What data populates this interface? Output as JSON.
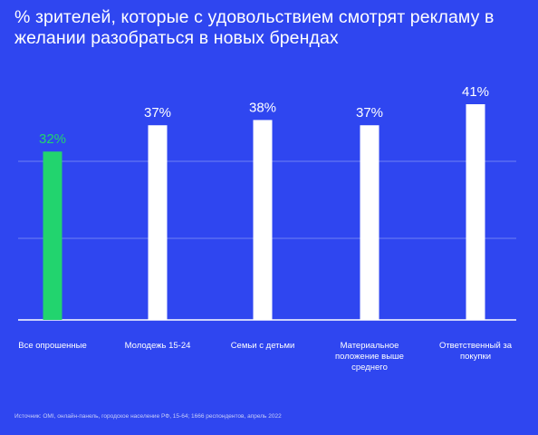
{
  "title": "% зрителей, которые с удовольствием смотрят рекламу в желании разобраться в новых брендах",
  "source": "Источник: OMI, онлайн-панель, городское население РФ, 15-64; 1666 респондентов, апрель 2022",
  "colors": {
    "background": "#2f46f0",
    "highlight_bar": "#22d46e",
    "bar": "#ffffff",
    "gridline": "#6f80f5",
    "text": "#ffffff"
  },
  "chart_data": {
    "type": "bar",
    "title": "% зрителей, которые с удовольствием смотрят рекламу в желании разобраться в новых брендах",
    "xlabel": "",
    "ylabel": "",
    "categories": [
      "Все опрошенные",
      "Молодежь 15-24",
      "Семьи с детьми",
      "Материальное положение выше среднего",
      "Ответственный за покупки"
    ],
    "values": [
      32,
      37,
      38,
      37,
      41
    ],
    "value_labels": [
      "32%",
      "37%",
      "38%",
      "37%",
      "41%"
    ],
    "highlight_index": 0,
    "ylim": [
      0,
      41
    ],
    "grid": true,
    "legend": "none"
  }
}
